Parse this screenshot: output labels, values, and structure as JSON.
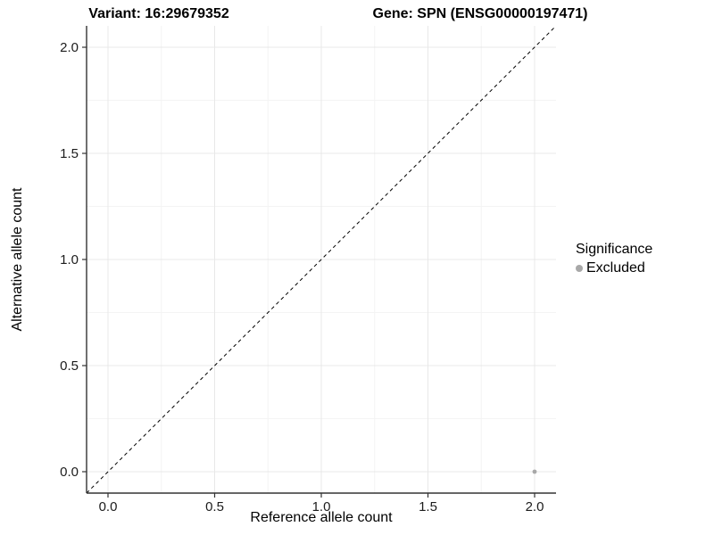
{
  "page": {
    "background": "#ffffff"
  },
  "header": {
    "title_left": "Variant: 16:29679352",
    "title_right": "Gene: SPN (ENSG00000197471)"
  },
  "chart_data": {
    "type": "scatter",
    "title": "Variant: 16:29679352          Gene: SPN (ENSG00000197471)",
    "xlabel": "Reference allele count",
    "ylabel": "Alternative allele count",
    "xlim": [
      -0.105,
      2.105
    ],
    "ylim": [
      -0.105,
      2.105
    ],
    "x_ticks": {
      "values": [
        0.0,
        0.5,
        1.0,
        1.5,
        2.0
      ],
      "labels": [
        "0.0",
        "0.5",
        "1.0",
        "1.5",
        "2.0"
      ]
    },
    "y_ticks": {
      "values": [
        0.0,
        0.5,
        1.0,
        1.5,
        2.0
      ],
      "labels": [
        "0.0",
        "0.5",
        "1.0",
        "1.5",
        "2.0"
      ]
    },
    "grid": {
      "major": [
        0.0,
        0.5,
        1.0,
        1.5,
        2.0
      ],
      "minor": [
        0.25,
        0.75,
        1.25,
        1.75
      ],
      "major_color": "#e8e8e8",
      "minor_color": "#f4f4f4"
    },
    "reference_line": {
      "type": "identity",
      "style": "dashed",
      "color": "#000000"
    },
    "series": [
      {
        "name": "Excluded",
        "color": "#a8a8a8",
        "points": [
          {
            "x": 2.0,
            "y": 0.0
          }
        ]
      }
    ],
    "legend": {
      "title": "Significance",
      "position": "right",
      "items": [
        {
          "label": "Excluded",
          "color": "#a8a8a8"
        }
      ]
    },
    "axis_color": "#333333"
  }
}
